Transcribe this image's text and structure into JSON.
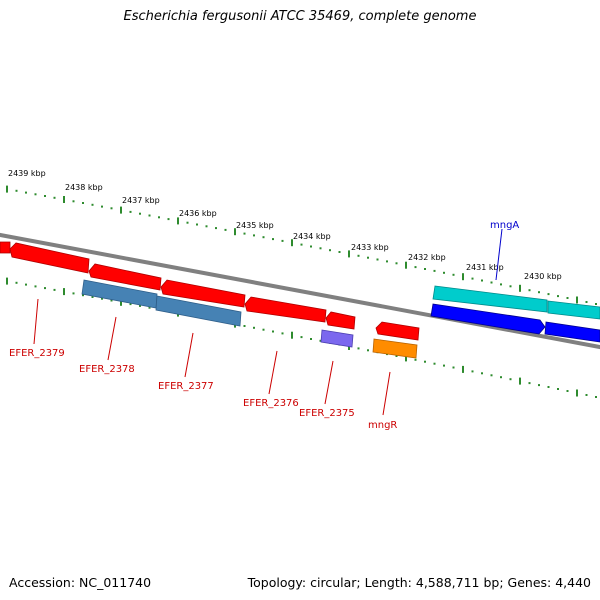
{
  "title": "Escherichia fergusonii ATCC 35469, complete genome",
  "footer": {
    "accession": "Accession: NC_011740",
    "stats": "Topology: circular; Length: 4,588,711 bp; Genes: 4,440"
  },
  "scale_labels": [
    "2439 kbp",
    "2438 kbp",
    "2437 kbp",
    "2436 kbp",
    "2435 kbp",
    "2434 kbp",
    "2433 kbp",
    "2432 kbp",
    "2431 kbp",
    "2430 kbp"
  ],
  "gene_labels": [
    {
      "text": "EFER_2379",
      "color": "#cc0000"
    },
    {
      "text": "EFER_2378",
      "color": "#cc0000"
    },
    {
      "text": "EFER_2377",
      "color": "#cc0000"
    },
    {
      "text": "EFER_2376",
      "color": "#cc0000"
    },
    {
      "text": "EFER_2375",
      "color": "#cc0000"
    },
    {
      "text": "mngR",
      "color": "#cc0000"
    },
    {
      "text": "mngA",
      "color": "#0000cc"
    }
  ],
  "colors": {
    "cds_minus": "#ff0000",
    "cds_plus": "#0000ff",
    "gene_row_steelblue": "#4682b4",
    "gene_row_cyan": "#00cccc",
    "gene_row_purple": "#7b68ee",
    "gene_row_orange": "#ff8c00",
    "backbone": "#808080",
    "ticks": "#2e8b2e"
  }
}
